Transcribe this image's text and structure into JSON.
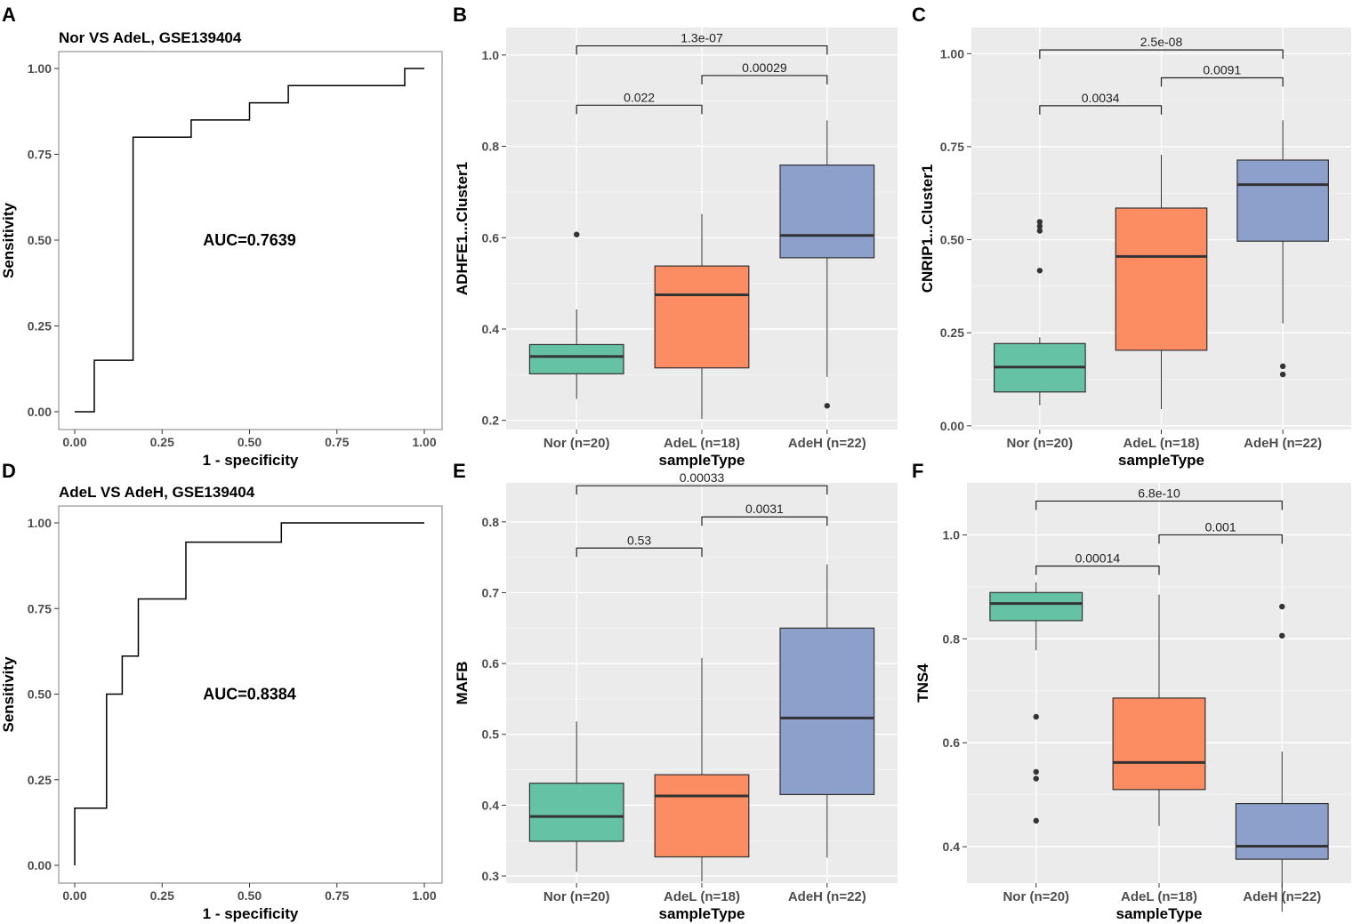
{
  "chart_data": [
    {
      "panel": "A",
      "type": "line",
      "title": "Nor VS AdeL, GSE139404",
      "xlabel": "1 - specificity",
      "ylabel": "Sensitivity",
      "xlim": [
        0,
        1
      ],
      "ylim": [
        0,
        1
      ],
      "x_ticks": [
        "0.00",
        "0.25",
        "0.50",
        "0.75",
        "1.00"
      ],
      "y_ticks": [
        "0.00",
        "0.25",
        "0.50",
        "0.75",
        "1.00"
      ],
      "annotation": "AUC=0.7639",
      "series": [
        {
          "name": "ROC",
          "x": [
            0,
            0.056,
            0.056,
            0.167,
            0.167,
            0.333,
            0.333,
            0.5,
            0.5,
            0.611,
            0.611,
            0.944,
            0.944,
            1.0
          ],
          "y": [
            0,
            0,
            0.15,
            0.15,
            0.8,
            0.8,
            0.85,
            0.85,
            0.9,
            0.9,
            0.95,
            0.95,
            1.0,
            1.0
          ]
        }
      ]
    },
    {
      "panel": "B",
      "type": "box",
      "xlabel": "sampleType",
      "ylabel": "ADHFE1...Cluster1",
      "ylim": [
        0.18,
        1.06
      ],
      "y_ticks": [
        "0.2",
        "0.4",
        "0.6",
        "0.8",
        "1.0"
      ],
      "categories": [
        "Nor (n=20)",
        "AdeL (n=18)",
        "AdeH (n=22)"
      ],
      "boxes": [
        {
          "min": 0.247,
          "q1": 0.302,
          "median": 0.34,
          "q3": 0.366,
          "max": 0.443,
          "outliers": [
            0.607
          ],
          "color": "#66c2a5"
        },
        {
          "min": 0.203,
          "q1": 0.315,
          "median": 0.475,
          "q3": 0.538,
          "max": 0.652,
          "outliers": [],
          "color": "#fc8d62"
        },
        {
          "min": 0.295,
          "q1": 0.556,
          "median": 0.605,
          "q3": 0.759,
          "max": 0.857,
          "outliers": [
            0.232
          ],
          "color": "#8da0cb"
        }
      ],
      "comparisons": [
        {
          "from": 0,
          "to": 1,
          "label": "0.022",
          "y": 0.89
        },
        {
          "from": 1,
          "to": 2,
          "label": "0.00029",
          "y": 0.955
        },
        {
          "from": 0,
          "to": 2,
          "label": "1.3e-07",
          "y": 1.02
        }
      ]
    },
    {
      "panel": "C",
      "type": "box",
      "xlabel": "sampleType",
      "ylabel": "CNRIP1...Cluster1",
      "ylim": [
        -0.01,
        1.07
      ],
      "y_ticks": [
        "0.00",
        "0.25",
        "0.50",
        "0.75",
        "1.00"
      ],
      "categories": [
        "Nor (n=20)",
        "AdeL (n=18)",
        "AdeH (n=22)"
      ],
      "boxes": [
        {
          "min": 0.055,
          "q1": 0.091,
          "median": 0.158,
          "q3": 0.221,
          "max": 0.238,
          "outliers": [
            0.548,
            0.536,
            0.524,
            0.417
          ],
          "color": "#66c2a5"
        },
        {
          "min": 0.045,
          "q1": 0.203,
          "median": 0.455,
          "q3": 0.585,
          "max": 0.728,
          "outliers": [],
          "color": "#fc8d62"
        },
        {
          "min": 0.275,
          "q1": 0.496,
          "median": 0.648,
          "q3": 0.714,
          "max": 0.821,
          "outliers": [
            0.16,
            0.138
          ],
          "color": "#8da0cb"
        }
      ],
      "comparisons": [
        {
          "from": 0,
          "to": 1,
          "label": "0.0034",
          "y": 0.86
        },
        {
          "from": 1,
          "to": 2,
          "label": "0.0091",
          "y": 0.935
        },
        {
          "from": 0,
          "to": 2,
          "label": "2.5e-08",
          "y": 1.01
        }
      ]
    },
    {
      "panel": "D",
      "type": "line",
      "title": "AdeL VS AdeH, GSE139404",
      "xlabel": "1 - specificity",
      "ylabel": "Sensitivity",
      "xlim": [
        0,
        1
      ],
      "ylim": [
        0,
        1
      ],
      "x_ticks": [
        "0.00",
        "0.25",
        "0.50",
        "0.75",
        "1.00"
      ],
      "y_ticks": [
        "0.00",
        "0.25",
        "0.50",
        "0.75",
        "1.00"
      ],
      "annotation": "AUC=0.8384",
      "series": [
        {
          "name": "ROC",
          "x": [
            0,
            0,
            0.091,
            0.091,
            0.136,
            0.136,
            0.182,
            0.182,
            0.318,
            0.318,
            0.591,
            0.591,
            1.0
          ],
          "y": [
            0,
            0.167,
            0.167,
            0.5,
            0.5,
            0.611,
            0.611,
            0.778,
            0.778,
            0.944,
            0.944,
            1.0,
            1.0
          ]
        }
      ]
    },
    {
      "panel": "E",
      "type": "box",
      "xlabel": "sampleType",
      "ylabel": "MAFB",
      "ylim": [
        0.29,
        0.855
      ],
      "y_ticks": [
        "0.3",
        "0.4",
        "0.5",
        "0.6",
        "0.7",
        "0.8"
      ],
      "categories": [
        "Nor (n=20)",
        "AdeL (n=18)",
        "AdeH (n=22)"
      ],
      "boxes": [
        {
          "min": 0.306,
          "q1": 0.349,
          "median": 0.384,
          "q3": 0.431,
          "max": 0.518,
          "outliers": [],
          "color": "#66c2a5"
        },
        {
          "min": 0.292,
          "q1": 0.327,
          "median": 0.413,
          "q3": 0.443,
          "max": 0.608,
          "outliers": [],
          "color": "#fc8d62"
        },
        {
          "min": 0.326,
          "q1": 0.415,
          "median": 0.523,
          "q3": 0.65,
          "max": 0.74,
          "outliers": [],
          "color": "#8da0cb"
        }
      ],
      "comparisons": [
        {
          "from": 0,
          "to": 1,
          "label": "0.53",
          "y": 0.763
        },
        {
          "from": 1,
          "to": 2,
          "label": "0.0031",
          "y": 0.807
        },
        {
          "from": 0,
          "to": 2,
          "label": "0.00033",
          "y": 0.851
        }
      ]
    },
    {
      "panel": "F",
      "type": "box",
      "xlabel": "sampleType",
      "ylabel": "TNS4",
      "ylim": [
        0.33,
        1.1
      ],
      "y_ticks": [
        "0.4",
        "0.6",
        "0.8",
        "1.0"
      ],
      "categories": [
        "Nor (n=20)",
        "AdeL (n=18)",
        "AdeH (n=22)"
      ],
      "boxes": [
        {
          "min": 0.778,
          "q1": 0.835,
          "median": 0.868,
          "q3": 0.889,
          "max": 0.909,
          "outliers": [
            0.65,
            0.544,
            0.531,
            0.45
          ],
          "color": "#66c2a5"
        },
        {
          "min": 0.44,
          "q1": 0.51,
          "median": 0.562,
          "q3": 0.686,
          "max": 0.885,
          "outliers": [],
          "color": "#fc8d62"
        },
        {
          "min": 0.275,
          "q1": 0.376,
          "median": 0.401,
          "q3": 0.483,
          "max": 0.583,
          "outliers": [
            0.862,
            0.806
          ],
          "color": "#8da0cb"
        }
      ],
      "comparisons": [
        {
          "from": 0,
          "to": 1,
          "label": "0.00014",
          "y": 0.94
        },
        {
          "from": 1,
          "to": 2,
          "label": "0.001",
          "y": 1.0
        },
        {
          "from": 0,
          "to": 2,
          "label": "6.8e-10",
          "y": 1.065
        }
      ]
    }
  ],
  "colors": {
    "plot_bg": "#ebebeb",
    "grid_major": "#ffffff",
    "box_outline": "#333333",
    "median": "#333333",
    "nor": "#66c2a5",
    "adel": "#fc8d62",
    "adeh": "#8da0cb"
  }
}
